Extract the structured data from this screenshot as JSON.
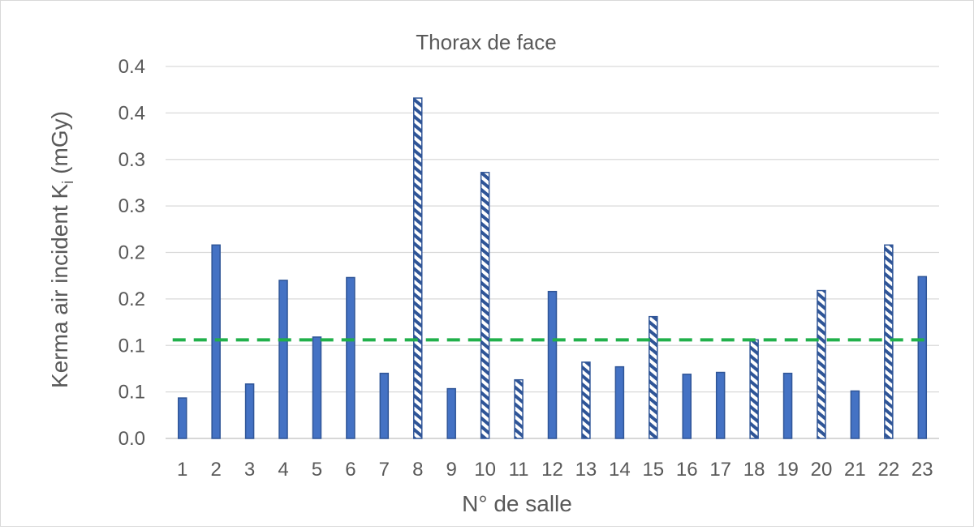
{
  "chart_data": {
    "type": "bar",
    "title": "Thorax de face",
    "xlabel": "N° de salle",
    "ylabel_main": "Kerma air incident K",
    "ylabel_sub": "i",
    "ylabel_unit": " (mGy)",
    "ylim": [
      0,
      0.4
    ],
    "y_tick_labels": [
      "0.0",
      "0.1",
      "0.1",
      "0.2",
      "0.2",
      "0.3",
      "0.3",
      "0.4",
      "0.4"
    ],
    "grid": true,
    "categories": [
      "1",
      "2",
      "3",
      "4",
      "5",
      "6",
      "7",
      "8",
      "9",
      "10",
      "11",
      "12",
      "13",
      "14",
      "15",
      "16",
      "17",
      "18",
      "19",
      "20",
      "21",
      "22",
      "23"
    ],
    "values": [
      0.0435,
      0.208,
      0.0585,
      0.17,
      0.109,
      0.173,
      0.07,
      0.366,
      0.0535,
      0.286,
      0.063,
      0.158,
      0.082,
      0.077,
      0.131,
      0.069,
      0.071,
      0.106,
      0.07,
      0.159,
      0.051,
      0.208,
      0.174
    ],
    "hatched": [
      false,
      false,
      false,
      false,
      false,
      false,
      false,
      true,
      false,
      true,
      true,
      false,
      true,
      false,
      true,
      false,
      false,
      true,
      false,
      true,
      false,
      true,
      false
    ],
    "reference_line": {
      "value": 0.106,
      "style": "dashed",
      "color": "#21b04b"
    },
    "colors": {
      "bar": "#4472c4",
      "bar_edge": "#2f5597",
      "grid": "#d9d9d9",
      "text": "#595959"
    }
  }
}
